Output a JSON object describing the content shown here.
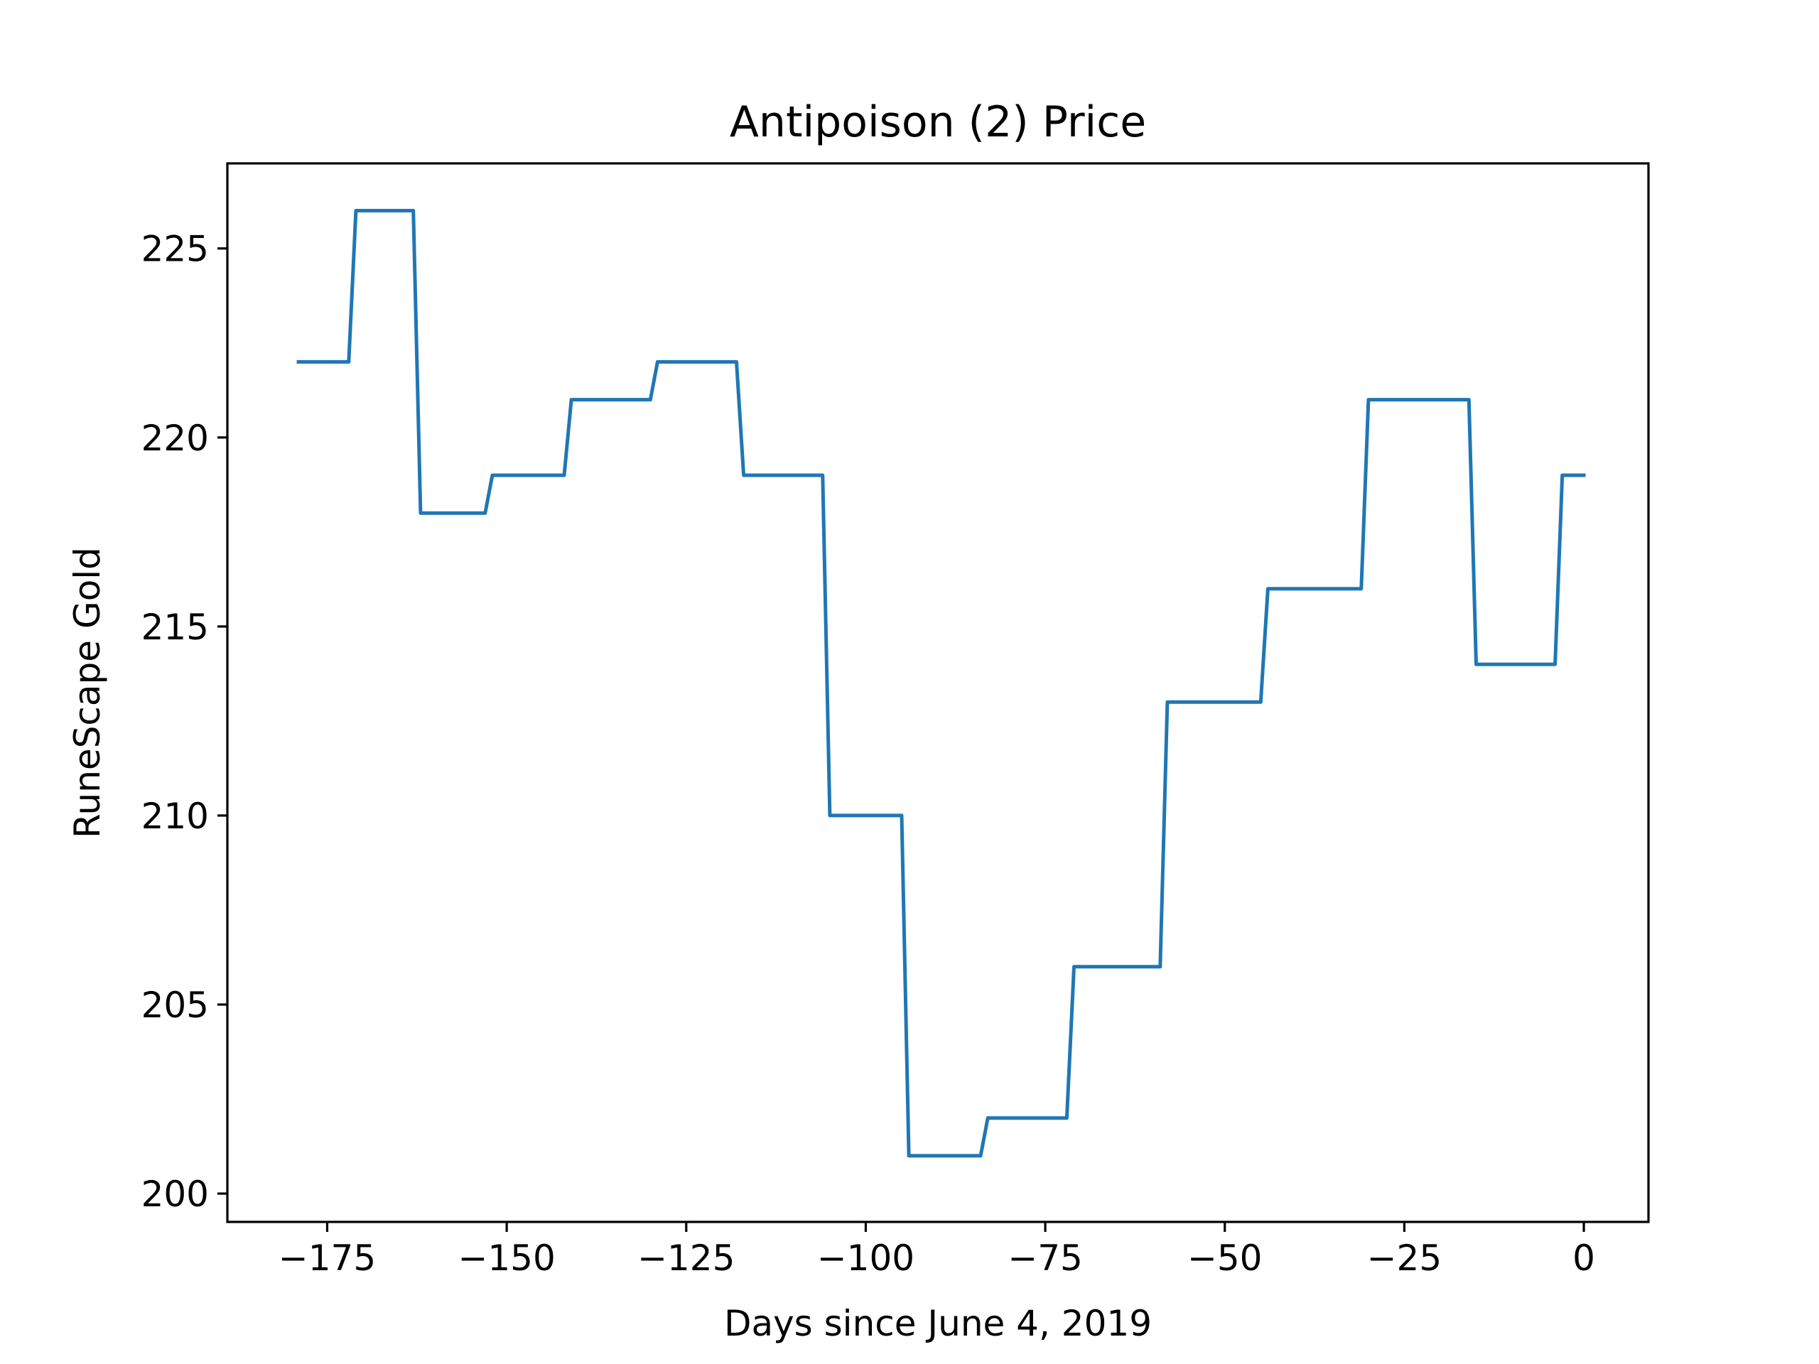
{
  "chart_data": {
    "type": "line",
    "title": "Antipoison (2) Price",
    "xlabel": "Days since June 4, 2019",
    "ylabel": "RuneScape Gold",
    "xlim": [
      -188.9,
      9
    ],
    "ylim": [
      199.25,
      227.25
    ],
    "xticks": [
      -175,
      -150,
      -125,
      -100,
      -75,
      -50,
      -25,
      0
    ],
    "xtick_labels": [
      "−175",
      "−150",
      "−125",
      "−100",
      "−75",
      "−50",
      "−25",
      "0"
    ],
    "yticks": [
      200,
      205,
      210,
      215,
      220,
      225
    ],
    "ytick_labels": [
      "200",
      "205",
      "210",
      "215",
      "220",
      "225"
    ],
    "grid": false,
    "series": [
      {
        "color": "#1f77b4",
        "x": [
          -179,
          -172,
          -171,
          -163,
          -162,
          -153,
          -152,
          -142,
          -141,
          -130,
          -129,
          -118,
          -117,
          -106,
          -105,
          -95,
          -94,
          -84,
          -83,
          -72,
          -71,
          -59,
          -58,
          -45,
          -44,
          -31,
          -30,
          -16,
          -15,
          -4,
          -3,
          0
        ],
        "y": [
          222,
          222,
          226,
          226,
          218,
          218,
          219,
          219,
          221,
          221,
          222,
          222,
          219,
          219,
          210,
          210,
          201,
          201,
          202,
          202,
          206,
          206,
          213,
          213,
          216,
          216,
          221,
          221,
          214,
          214,
          219,
          219
        ]
      }
    ]
  }
}
